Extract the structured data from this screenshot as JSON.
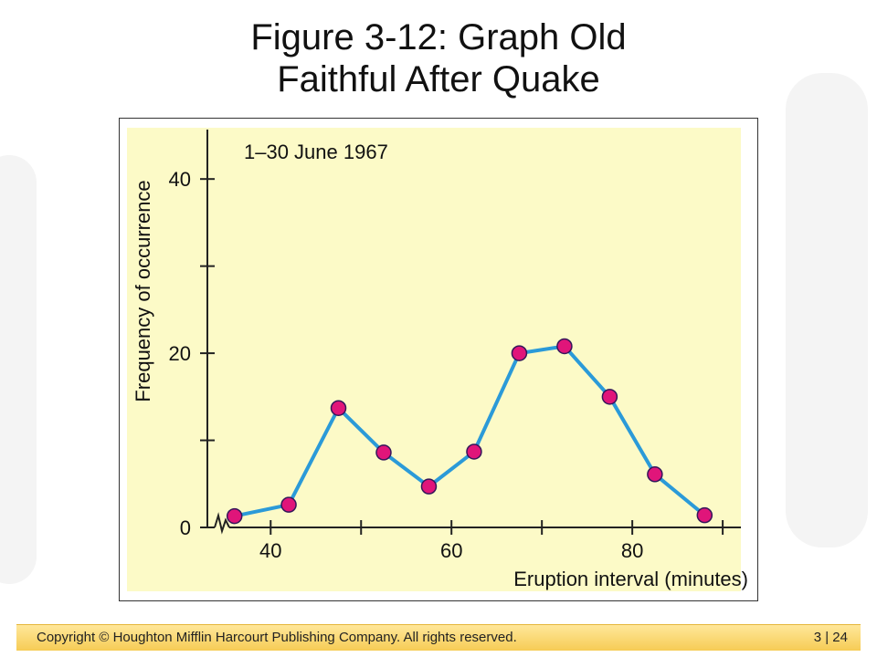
{
  "slide": {
    "title_line1": "Figure 3-12: Graph Old",
    "title_line2": "Faithful After Quake"
  },
  "footer": {
    "copyright": "Copyright © Houghton Mifflin Harcourt Publishing Company. All rights reserved.",
    "page": "3 | 24"
  },
  "colors": {
    "plot_background": "#fcfac7",
    "line": "#2b9ad8",
    "marker_fill": "#e0157a",
    "marker_edge": "#34175a",
    "axis": "#222222"
  },
  "chart_data": {
    "type": "line",
    "annotation": "1–30 June 1967",
    "xlabel": "Eruption interval (minutes)",
    "ylabel": "Frequency of occurrence",
    "xlim": [
      33,
      91
    ],
    "ylim": [
      0,
      44
    ],
    "x_ticks": [
      40,
      50,
      60,
      70,
      80,
      90
    ],
    "x_tick_labels": [
      "40",
      "",
      "60",
      "",
      "80",
      ""
    ],
    "y_ticks": [
      0,
      10,
      20,
      30,
      40
    ],
    "y_tick_labels": [
      "0",
      "",
      "20",
      "",
      "40"
    ],
    "x_axis_break": true,
    "grid": false,
    "series": [
      {
        "x": [
          36,
          42,
          47.5,
          52.5,
          57.5,
          62.5,
          67.5,
          72.5,
          77.5,
          82.5,
          88
        ],
        "values": [
          1.3,
          2.6,
          13.7,
          8.6,
          4.7,
          8.7,
          20,
          20.8,
          15,
          6.1,
          1.4
        ]
      }
    ]
  }
}
